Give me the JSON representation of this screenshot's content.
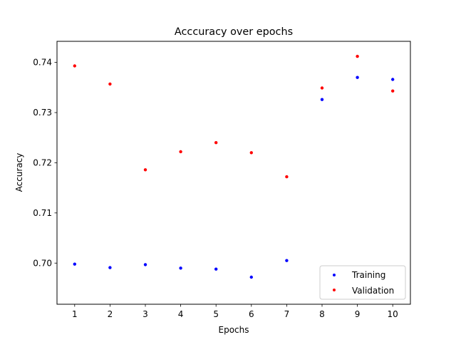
{
  "chart_data": {
    "type": "scatter",
    "title": "Acccuracy over epochs",
    "xlabel": "Epochs",
    "ylabel": "Accuracy",
    "x": [
      1,
      2,
      3,
      4,
      5,
      6,
      7,
      8,
      9,
      10
    ],
    "xlim": [
      0.5,
      10.5
    ],
    "ylim": [
      0.6918,
      0.7442
    ],
    "xticks": [
      1,
      2,
      3,
      4,
      5,
      6,
      7,
      8,
      9,
      10
    ],
    "yticks": [
      0.7,
      0.71,
      0.72,
      0.73,
      0.74
    ],
    "ytick_labels": [
      "0.70",
      "0.71",
      "0.72",
      "0.73",
      "0.74"
    ],
    "grid": false,
    "legend_position": "lower-right",
    "series": [
      {
        "name": "Training",
        "color": "#0000ff",
        "values": [
          0.6998,
          0.6991,
          0.6997,
          0.699,
          0.6988,
          0.6972,
          0.7005,
          0.7326,
          0.737,
          0.7366
        ]
      },
      {
        "name": "Validation",
        "color": "#ff0000",
        "values": [
          0.7393,
          0.7357,
          0.7186,
          0.7222,
          0.724,
          0.722,
          0.7172,
          0.7349,
          0.7412,
          0.7343
        ]
      }
    ]
  }
}
